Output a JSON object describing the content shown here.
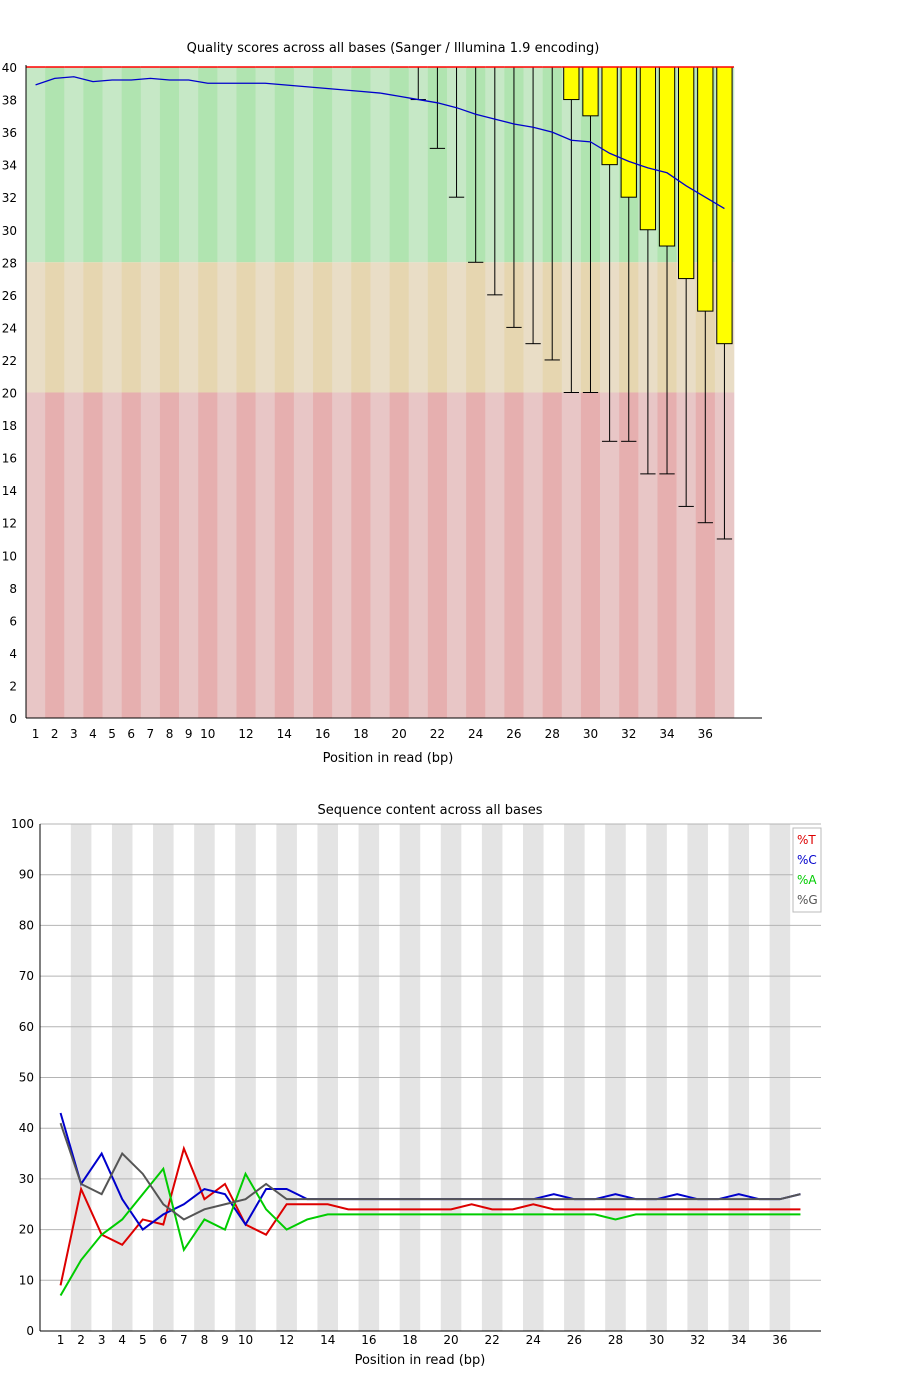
{
  "chart_data": [
    {
      "type": "box",
      "title": "Quality scores across all bases (Sanger / Illumina 1.9 encoding)",
      "xlabel": "Position in read (bp)",
      "ylabel": "",
      "ylim": [
        0,
        40
      ],
      "y_ticks": [
        "0",
        "2",
        "4",
        "6",
        "8",
        "10",
        "12",
        "14",
        "16",
        "18",
        "20",
        "22",
        "24",
        "26",
        "28",
        "30",
        "32",
        "34",
        "36",
        "38",
        "40"
      ],
      "x_ticks": [
        "1",
        "2",
        "3",
        "4",
        "5",
        "6",
        "7",
        "8",
        "9",
        "10",
        "12",
        "14",
        "16",
        "18",
        "20",
        "22",
        "24",
        "26",
        "28",
        "30",
        "32",
        "34",
        "36"
      ],
      "positions": [
        1,
        2,
        3,
        4,
        5,
        6,
        7,
        8,
        9,
        10,
        11,
        12,
        13,
        14,
        15,
        16,
        17,
        18,
        19,
        20,
        21,
        22,
        23,
        24,
        25,
        26,
        27,
        28,
        29,
        30,
        31,
        32,
        33,
        34,
        35,
        36,
        37
      ],
      "lower_quartile": [
        40,
        40,
        40,
        40,
        40,
        40,
        40,
        40,
        40,
        40,
        40,
        40,
        40,
        40,
        40,
        40,
        40,
        40,
        40,
        40,
        40,
        40,
        40,
        40,
        40,
        40,
        40,
        40,
        38,
        37,
        34,
        32,
        30,
        29,
        27,
        25,
        23
      ],
      "upper_quartile": [
        40,
        40,
        40,
        40,
        40,
        40,
        40,
        40,
        40,
        40,
        40,
        40,
        40,
        40,
        40,
        40,
        40,
        40,
        40,
        40,
        40,
        40,
        40,
        40,
        40,
        40,
        40,
        40,
        40,
        40,
        40,
        40,
        40,
        40,
        40,
        40,
        40
      ],
      "lower_whisker": [
        40,
        40,
        40,
        40,
        40,
        40,
        40,
        40,
        40,
        40,
        40,
        40,
        40,
        40,
        40,
        40,
        40,
        40,
        40,
        40,
        38,
        35,
        32,
        28,
        26,
        24,
        23,
        22,
        20,
        20,
        17,
        17,
        15,
        15,
        13,
        12,
        11
      ],
      "upper_whisker": [
        40,
        40,
        40,
        40,
        40,
        40,
        40,
        40,
        40,
        40,
        40,
        40,
        40,
        40,
        40,
        40,
        40,
        40,
        40,
        40,
        40,
        40,
        40,
        40,
        40,
        40,
        40,
        40,
        40,
        40,
        40,
        40,
        40,
        40,
        40,
        40,
        40
      ],
      "median": [
        40,
        40,
        40,
        40,
        40,
        40,
        40,
        40,
        40,
        40,
        40,
        40,
        40,
        40,
        40,
        40,
        40,
        40,
        40,
        40,
        40,
        40,
        40,
        40,
        40,
        40,
        40,
        40,
        40,
        40,
        40,
        40,
        40,
        40,
        40,
        40,
        40
      ],
      "mean": [
        38.9,
        39.3,
        39.4,
        39.1,
        39.2,
        39.2,
        39.3,
        39.2,
        39.2,
        39.0,
        39.0,
        39.0,
        39.0,
        38.9,
        38.8,
        38.7,
        38.6,
        38.5,
        38.4,
        38.2,
        38.0,
        37.8,
        37.5,
        37.1,
        36.8,
        36.5,
        36.3,
        36.0,
        35.5,
        35.4,
        34.7,
        34.2,
        33.8,
        33.5,
        32.7,
        32.0,
        31.3
      ],
      "zones": [
        {
          "from": 28,
          "to": 40,
          "color_light": "#c6e8c6",
          "color_dark": "#b0e4b0"
        },
        {
          "from": 20,
          "to": 28,
          "color_light": "#e9ddc6",
          "color_dark": "#e6d6b0"
        },
        {
          "from": 0,
          "to": 20,
          "color_light": "#e8c6c6",
          "color_dark": "#e6afaf"
        }
      ],
      "colors": {
        "box": "#ffff00",
        "mean_line": "#0000cc",
        "median_line": "#ff0000",
        "whisker": "#000000"
      }
    },
    {
      "type": "line",
      "title": "Sequence content across all bases",
      "xlabel": "Position in read (bp)",
      "ylabel": "",
      "ylim": [
        0,
        100
      ],
      "y_ticks": [
        "0",
        "10",
        "20",
        "30",
        "40",
        "50",
        "60",
        "70",
        "80",
        "90",
        "100"
      ],
      "x_ticks": [
        "1",
        "2",
        "3",
        "4",
        "5",
        "6",
        "7",
        "8",
        "9",
        "10",
        "12",
        "14",
        "16",
        "18",
        "20",
        "22",
        "24",
        "26",
        "28",
        "30",
        "32",
        "34",
        "36"
      ],
      "positions": [
        1,
        2,
        3,
        4,
        5,
        6,
        7,
        8,
        9,
        10,
        11,
        12,
        13,
        14,
        15,
        16,
        17,
        18,
        19,
        20,
        21,
        22,
        23,
        24,
        25,
        26,
        27,
        28,
        29,
        30,
        31,
        32,
        33,
        34,
        35,
        36,
        37
      ],
      "legend_position": "top-right",
      "grid": true,
      "series": [
        {
          "name": "%T",
          "color": "#dd0000",
          "values": [
            9,
            28,
            19,
            17,
            22,
            21,
            36,
            26,
            29,
            21,
            19,
            25,
            25,
            25,
            24,
            24,
            24,
            24,
            24,
            24,
            25,
            24,
            24,
            25,
            24,
            24,
            24,
            24,
            24,
            24,
            24,
            24,
            24,
            24,
            24,
            24,
            24
          ]
        },
        {
          "name": "%C",
          "color": "#0000cc",
          "values": [
            43,
            29,
            35,
            26,
            20,
            23,
            25,
            28,
            27,
            21,
            28,
            28,
            26,
            26,
            26,
            26,
            26,
            26,
            26,
            26,
            26,
            26,
            26,
            26,
            27,
            26,
            26,
            27,
            26,
            26,
            27,
            26,
            26,
            27,
            26,
            26,
            27
          ]
        },
        {
          "name": "%A",
          "color": "#00cc00",
          "values": [
            7,
            14,
            19,
            22,
            27,
            32,
            16,
            22,
            20,
            31,
            24,
            20,
            22,
            23,
            23,
            23,
            23,
            23,
            23,
            23,
            23,
            23,
            23,
            23,
            23,
            23,
            23,
            22,
            23,
            23,
            23,
            23,
            23,
            23,
            23,
            23,
            23
          ]
        },
        {
          "name": "%G",
          "color": "#555555",
          "values": [
            41,
            29,
            27,
            35,
            31,
            25,
            22,
            24,
            25,
            26,
            29,
            26,
            26,
            26,
            26,
            26,
            26,
            26,
            26,
            26,
            26,
            26,
            26,
            26,
            26,
            26,
            26,
            26,
            26,
            26,
            26,
            26,
            26,
            26,
            26,
            26,
            27
          ]
        }
      ]
    }
  ]
}
